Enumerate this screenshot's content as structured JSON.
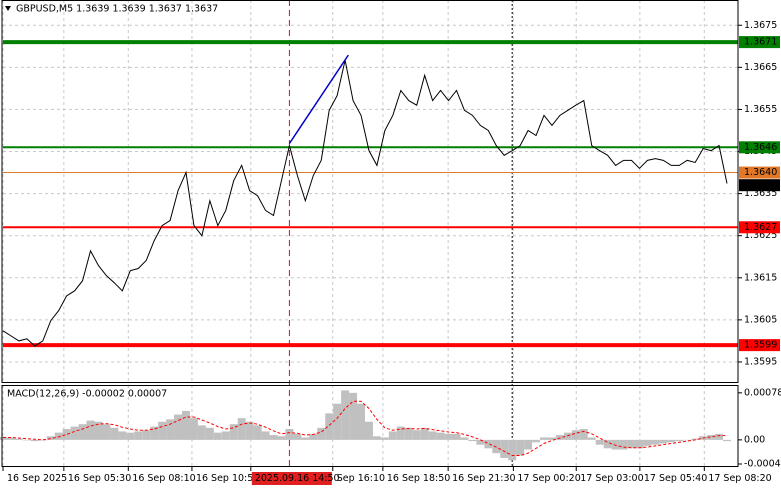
{
  "chart_data": [
    {
      "type": "line",
      "title": "GBPUSD,M5  1.3639 1.3639 1.3637 1.3637",
      "values": [
        1.36024,
        1.36012,
        1.36,
        1.36005,
        1.35988,
        1.36,
        1.36048,
        1.36072,
        1.36107,
        1.36119,
        1.36143,
        1.36214,
        1.36179,
        1.36155,
        1.36138,
        1.36119,
        1.36167,
        1.36172,
        1.36191,
        1.36238,
        1.36274,
        1.36286,
        1.36357,
        1.364,
        1.36274,
        1.3625,
        1.36333,
        1.36274,
        1.3631,
        1.36381,
        1.36417,
        1.36357,
        1.36345,
        1.3631,
        1.36298,
        1.36381,
        1.36464,
        1.36393,
        1.36333,
        1.36393,
        1.36429,
        1.36548,
        1.36583,
        1.36667,
        1.36571,
        1.36536,
        1.36452,
        1.36417,
        1.365,
        1.36536,
        1.36595,
        1.36571,
        1.3656,
        1.36631,
        1.36571,
        1.36595,
        1.36571,
        1.36595,
        1.36548,
        1.36536,
        1.36512,
        1.365,
        1.36464,
        1.36441,
        1.36452,
        1.36464,
        1.365,
        1.36488,
        1.36536,
        1.36512,
        1.36536,
        1.36548,
        1.3656,
        1.36571,
        1.36464,
        1.36452,
        1.36441,
        1.36417,
        1.36429,
        1.36429,
        1.3641,
        1.36429,
        1.36433,
        1.36429,
        1.36417,
        1.36417,
        1.36429,
        1.36424,
        1.36457,
        1.36452,
        1.36464,
        1.36374
      ],
      "color": "#000000",
      "ylim": [
        1.359,
        1.3681
      ],
      "yticks": [
        1.3595,
        1.3605,
        1.3615,
        1.3625,
        1.3635,
        1.3645,
        1.3655,
        1.3665,
        1.3675
      ],
      "xticks": [
        {
          "value": 0.25,
          "label": "16 Sep 2025"
        },
        {
          "value": 7.9,
          "label": "16 Sep 05:30"
        },
        {
          "value": 16,
          "label": "16 Sep 08:10"
        },
        {
          "value": 24,
          "label": "16 Sep 10:50"
        },
        {
          "value": 31.4,
          "label": "2025.09.16 14:50",
          "highlight": true
        },
        {
          "value": 41.7,
          "label": "Sep 16:10"
        },
        {
          "value": 48,
          "label": "16 Sep 18:50"
        },
        {
          "value": 56.2,
          "label": "16 Sep 21:30"
        },
        {
          "value": 64.4,
          "label": "17 Sep 00:20"
        },
        {
          "value": 72.3,
          "label": "17 Sep 03:00"
        },
        {
          "value": 80.3,
          "label": "17 Sep 05:40"
        },
        {
          "value": 88.4,
          "label": "17 Sep 08:20"
        }
      ],
      "grid": true,
      "levels": [
        {
          "value": 1.3671,
          "color": "#008000",
          "width": 4
        },
        {
          "value": 1.3646,
          "color": "#008000",
          "width": 2
        },
        {
          "value": 1.364,
          "label": "1.3640",
          "color": "#e07828",
          "width": 1
        },
        {
          "value": 1.3627,
          "color": "#ff0000",
          "width": 2
        },
        {
          "value": 1.3599,
          "color": "#ff0000",
          "width": 4
        }
      ],
      "current_price": 1.3637,
      "trend_line": {
        "x": [
          36,
          43.4
        ],
        "y": [
          1.36469,
          1.36679
        ],
        "color": "#0000cd"
      },
      "vlines": [
        {
          "x": 36,
          "color": "#ff0000"
        },
        {
          "x": 64,
          "color": "#000000"
        }
      ]
    },
    {
      "type": "macd",
      "title": "MACD(12,26,9) -0.00002 0.00007",
      "series": [
        {
          "color": "#c0c0c0",
          "values": [
            5e-05,
            4e-05,
            2e-05,
            0,
            -2e-05,
            0,
            6e-05,
            0.00012,
            0.00018,
            0.00022,
            0.00026,
            0.00032,
            0.0003,
            0.00026,
            0.0002,
            0.00014,
            0.00012,
            0.00014,
            0.00016,
            0.00022,
            0.0003,
            0.00034,
            0.00042,
            0.00048,
            0.00036,
            0.00024,
            0.0002,
            0.00012,
            0.00014,
            0.00026,
            0.00036,
            0.0003,
            0.00024,
            0.00014,
            8e-05,
            6e-05,
            0.00018,
            0.0001,
            4e-05,
            0.0001,
            0.0002,
            0.00044,
            0.0006,
            0.00082,
            0.00078,
            0.0006,
            0.0003,
            6e-05,
            4e-05,
            0.00014,
            0.00022,
            0.0002,
            0.00016,
            0.0002,
            0.00014,
            0.00012,
            0.0001,
            0.0001,
            4e-05,
            -2e-05,
            -8e-05,
            -0.00014,
            -0.00022,
            -0.0003,
            -0.00034,
            -0.00026,
            -0.00016,
            -4e-05,
            4e-05,
            4e-05,
            8e-05,
            0.00012,
            0.00016,
            0.00018,
            4e-05,
            -8e-05,
            -0.00014,
            -0.00016,
            -0.00016,
            -0.00014,
            -0.00014,
            -0.0001,
            -8e-05,
            -6e-05,
            -4e-05,
            -2e-05,
            0,
            2e-05,
            6e-05,
            8e-05,
            0.0001,
            -2e-05
          ]
        },
        {
          "color": "#ff0000",
          "values": [
            4e-05,
            4e-05,
            3e-05,
            2e-05,
            1e-05,
            0,
            2e-05,
            5e-05,
            9e-05,
            0.00014,
            0.00018,
            0.00023,
            0.00026,
            0.00027,
            0.00025,
            0.00021,
            0.00018,
            0.00016,
            0.00016,
            0.00018,
            0.00022,
            0.00026,
            0.00032,
            0.00038,
            0.00038,
            0.00033,
            0.00028,
            0.00022,
            0.00018,
            0.0002,
            0.00026,
            0.00028,
            0.00026,
            0.00021,
            0.00015,
            0.0001,
            0.00012,
            0.00011,
            8e-05,
            9e-05,
            0.00013,
            0.00024,
            0.00036,
            0.00052,
            0.00064,
            0.00064,
            0.00052,
            0.00034,
            0.0002,
            0.00016,
            0.00018,
            0.00019,
            0.00018,
            0.00019,
            0.00017,
            0.00015,
            0.00013,
            0.00012,
            9e-05,
            5e-05,
            0,
            -6e-05,
            -0.00012,
            -0.00019,
            -0.00026,
            -0.00026,
            -0.00022,
            -0.00014,
            -6e-05,
            -1e-05,
            3e-05,
            7e-05,
            0.00011,
            0.00014,
            0.0001,
            3e-05,
            -4e-05,
            -9e-05,
            -0.00012,
            -0.00013,
            -0.00013,
            -0.00012,
            -0.0001,
            -8e-05,
            -6e-05,
            -4e-05,
            -2e-05,
            0,
            3e-05,
            5e-05,
            7e-05,
            7e-05
          ]
        }
      ],
      "ylim": [
        -0.00045,
        0.00091
      ],
      "yticks": [
        -0.0004,
        {
          "value": 0,
          "label": "0.00"
        },
        0.00078
      ]
    }
  ]
}
